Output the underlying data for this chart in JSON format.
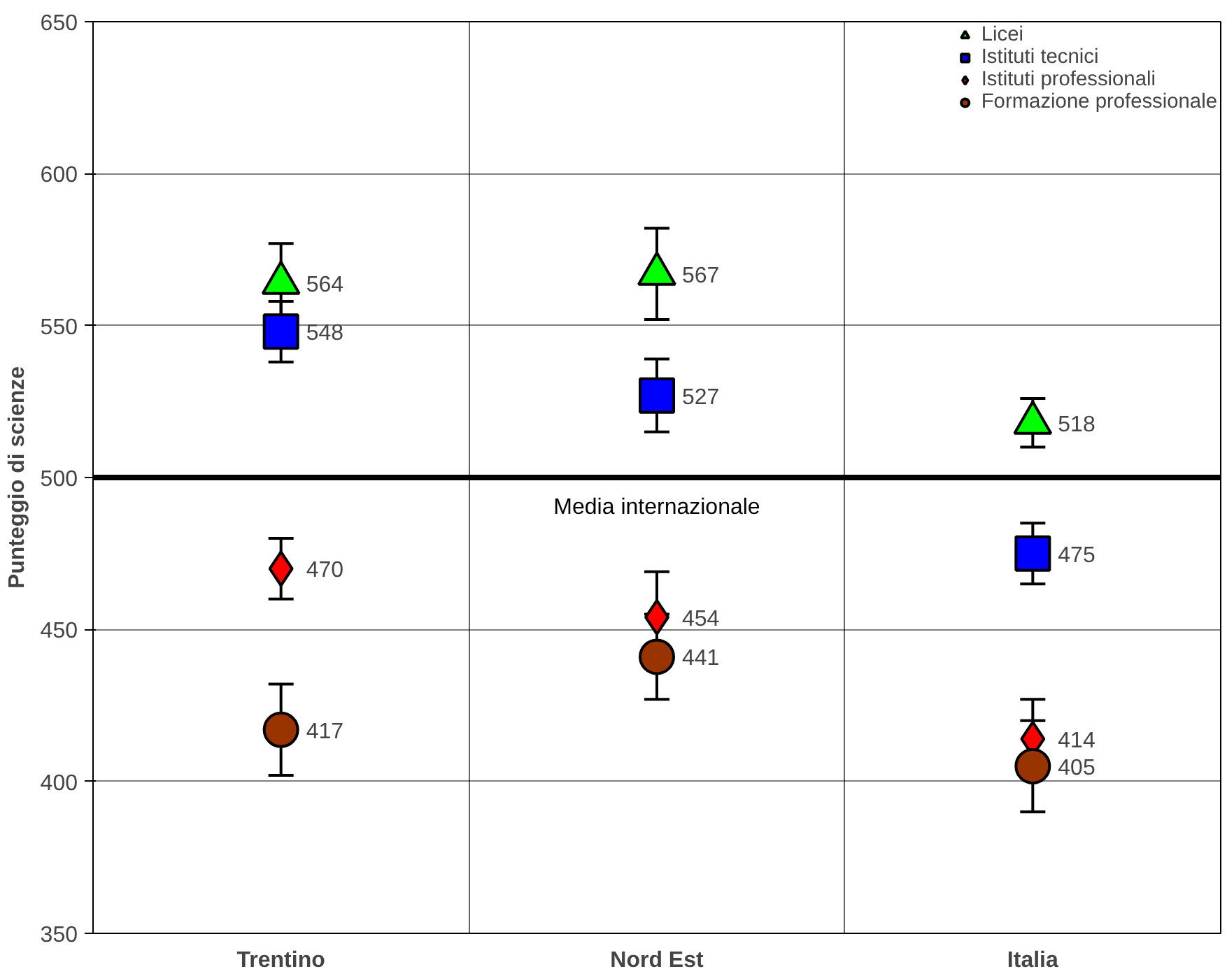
{
  "chart_data": {
    "type": "scatter",
    "ylabel": "Punteggio di scienze",
    "categories": [
      "Trentino",
      "Nord Est",
      "Italia"
    ],
    "ylim": [
      350,
      650
    ],
    "yticks": [
      350,
      400,
      450,
      500,
      550,
      600,
      650
    ],
    "grid": true,
    "legend": "top right",
    "data_labels": true,
    "ref_lines": [
      {
        "axis": "y",
        "value": 500,
        "label": "Media internazionale",
        "color": "#000000"
      }
    ],
    "series": [
      {
        "name": "Licei",
        "color": "#00ff00",
        "marker": "triangle",
        "values": [
          564,
          567,
          518
        ],
        "errors": [
          13,
          15,
          8
        ]
      },
      {
        "name": "Istituti tecnici",
        "color": "#0000ff",
        "marker": "square",
        "values": [
          548,
          527,
          475
        ],
        "errors": [
          10,
          12,
          10
        ]
      },
      {
        "name": "Istituti professionali",
        "color": "#ff0000",
        "marker": "diamond",
        "values": [
          470,
          454,
          414
        ],
        "errors": [
          10,
          15,
          13
        ]
      },
      {
        "name": "Formazione professionale",
        "color": "#993300",
        "marker": "circle",
        "values": [
          417,
          441,
          405
        ],
        "errors": [
          15,
          14,
          15
        ]
      }
    ]
  }
}
